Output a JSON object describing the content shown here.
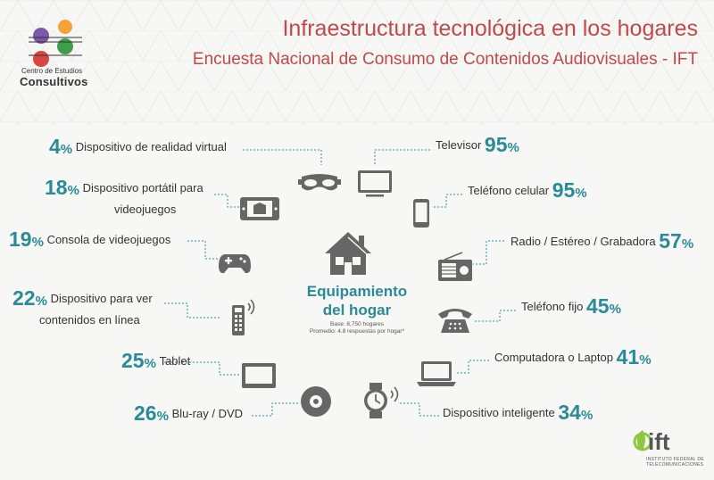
{
  "header": {
    "title": "Infraestructura tecnológica en los hogares",
    "subtitle": "Encuesta Nacional de Consumo de Contenidos Audiovisuales - IFT"
  },
  "logo": {
    "line1": "Centro de Estudios",
    "line2": "Consultivos",
    "colors": [
      "#7a5aa8",
      "#f2a33a",
      "#d8463f",
      "#3f9e4b"
    ]
  },
  "center": {
    "title_line1": "Equipamiento",
    "title_line2": "del hogar",
    "base": "Base: 8,750 hogares",
    "avg": "Promedio: 4.8 respuestas por hogar*"
  },
  "left_items": [
    {
      "pct": "4",
      "label": "Dispositivo de realidad virtual",
      "label2": "",
      "icon": "vr-headset-icon"
    },
    {
      "pct": "18",
      "label": "Dispositivo portátil para",
      "label2": "videojuegos",
      "icon": "handheld-console-icon"
    },
    {
      "pct": "19",
      "label": "Consola de videojuegos",
      "label2": "",
      "icon": "gamepad-icon"
    },
    {
      "pct": "22",
      "label": "Dispositivo para ver",
      "label2": "contenidos en línea",
      "icon": "streaming-remote-icon"
    },
    {
      "pct": "25",
      "label": "Tablet",
      "label2": "",
      "icon": "tablet-icon"
    },
    {
      "pct": "26",
      "label": "Blu-ray / DVD",
      "label2": "",
      "icon": "disc-icon"
    }
  ],
  "right_items": [
    {
      "pct": "95",
      "label": "Televisor",
      "icon": "tv-icon"
    },
    {
      "pct": "95",
      "label": "Teléfono celular",
      "icon": "smartphone-icon"
    },
    {
      "pct": "57",
      "label": "Radio / Estéreo / Grabadora",
      "icon": "radio-icon"
    },
    {
      "pct": "45",
      "label": "Teléfono fijo",
      "icon": "landline-phone-icon"
    },
    {
      "pct": "41",
      "label": "Computadora o Laptop",
      "icon": "laptop-icon"
    },
    {
      "pct": "34",
      "label": "Dispositivo inteligente",
      "icon": "smartwatch-icon"
    }
  ],
  "pct_sign": "%",
  "ift": {
    "name": "ift",
    "sub1": "INSTITUTO FEDERAL DE",
    "sub2": "TELECOMUNICACIONES",
    "color": "#8dc63f"
  },
  "colors": {
    "teal": "#2a8a99",
    "title_red": "#c0494c",
    "icon_gray": "#666666"
  }
}
